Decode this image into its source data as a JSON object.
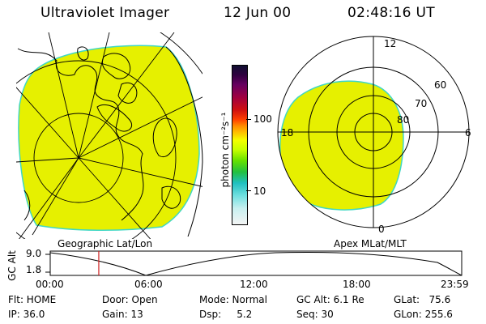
{
  "header": {
    "title": "Ultraviolet Imager",
    "date": "12 Jun 00",
    "time": "02:48:16 UT"
  },
  "left_panel": {
    "caption": "Geographic Lat/Lon"
  },
  "right_panel": {
    "caption": "Apex MLat/MLT",
    "mlt_labels": {
      "top": "12",
      "left": "18",
      "right": "6",
      "bottom": "0"
    },
    "mlat_labels": [
      "60",
      "70",
      "80"
    ]
  },
  "colorbar": {
    "ticks": [
      "100",
      "10"
    ],
    "unit_label": "photon cm⁻²s⁻¹"
  },
  "altitude_plot": {
    "axis_title": "GC Alt",
    "y_ticks": [
      "9.0",
      "1.8"
    ],
    "x_ticks": [
      "00:00",
      "06:00",
      "12:00",
      "18:00",
      "23:59"
    ],
    "current_time_marker_fraction": 0.118
  },
  "status": {
    "flt": "Flt: HOME",
    "ip": "IP: 36.0",
    "door": "Door: Open",
    "gain": "Gain: 13",
    "mode": "Mode: Normal",
    "dsp": "Dsp:     5.2",
    "gc_alt": "GC Alt: 6.1 Re",
    "seq": "Seq: 30",
    "glat": "GLat:   75.6",
    "glon": "GLon: 255.6"
  },
  "colors": {
    "aurora_fill": "#e6f000",
    "aurora_edge": "#3fd7c4",
    "time_marker": "#cc2020"
  }
}
